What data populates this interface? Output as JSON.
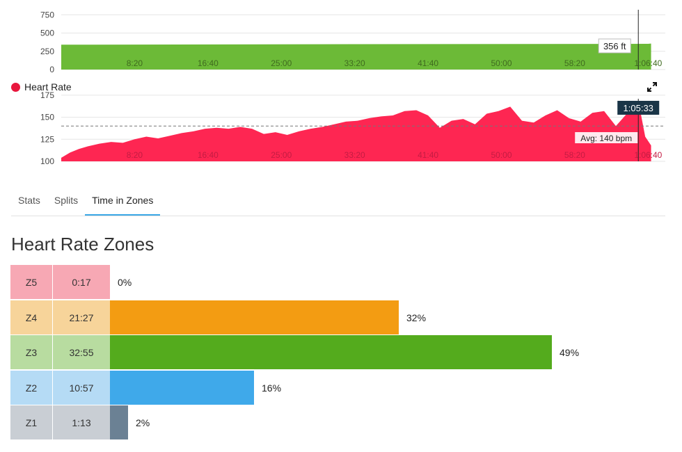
{
  "chart_data": [
    {
      "type": "area",
      "series": [
        {
          "values": [
            {
              "x": 0,
              "y": 340
            },
            {
              "x": 2000,
              "y": 348
            },
            {
              "x": 4000,
              "y": 352
            },
            {
              "x": 4020,
              "y": 356
            }
          ]
        }
      ],
      "y_ticks": [
        "750",
        "500",
        "250",
        "0"
      ],
      "ylim": [
        0,
        800
      ],
      "x_tick_labels": [
        "8:20",
        "16:40",
        "25:00",
        "33:20",
        "41:40",
        "50:00",
        "58:20",
        "1:06:40"
      ],
      "xlim_seconds": [
        0,
        4060
      ],
      "cursor_time_seconds": 3933,
      "cursor_label": "356 ft",
      "fill_color": "#6cba37",
      "grid": true
    },
    {
      "type": "area",
      "series": [
        {
          "name": "Heart Rate",
          "values": [
            {
              "x": 0,
              "y": 104
            },
            {
              "x": 60,
              "y": 110
            },
            {
              "x": 120,
              "y": 114
            },
            {
              "x": 180,
              "y": 117
            },
            {
              "x": 260,
              "y": 120
            },
            {
              "x": 340,
              "y": 122
            },
            {
              "x": 420,
              "y": 121
            },
            {
              "x": 500,
              "y": 125
            },
            {
              "x": 580,
              "y": 128
            },
            {
              "x": 660,
              "y": 126
            },
            {
              "x": 740,
              "y": 129
            },
            {
              "x": 820,
              "y": 132
            },
            {
              "x": 900,
              "y": 134
            },
            {
              "x": 980,
              "y": 137
            },
            {
              "x": 1060,
              "y": 138
            },
            {
              "x": 1140,
              "y": 137
            },
            {
              "x": 1220,
              "y": 139
            },
            {
              "x": 1300,
              "y": 137
            },
            {
              "x": 1380,
              "y": 131
            },
            {
              "x": 1460,
              "y": 133
            },
            {
              "x": 1540,
              "y": 130
            },
            {
              "x": 1620,
              "y": 134
            },
            {
              "x": 1700,
              "y": 137
            },
            {
              "x": 1780,
              "y": 139
            },
            {
              "x": 1860,
              "y": 142
            },
            {
              "x": 1940,
              "y": 145
            },
            {
              "x": 2020,
              "y": 146
            },
            {
              "x": 2100,
              "y": 149
            },
            {
              "x": 2180,
              "y": 151
            },
            {
              "x": 2260,
              "y": 152
            },
            {
              "x": 2340,
              "y": 157
            },
            {
              "x": 2420,
              "y": 158
            },
            {
              "x": 2500,
              "y": 152
            },
            {
              "x": 2580,
              "y": 138
            },
            {
              "x": 2660,
              "y": 146
            },
            {
              "x": 2740,
              "y": 148
            },
            {
              "x": 2820,
              "y": 142
            },
            {
              "x": 2900,
              "y": 154
            },
            {
              "x": 2980,
              "y": 157
            },
            {
              "x": 3060,
              "y": 162
            },
            {
              "x": 3140,
              "y": 146
            },
            {
              "x": 3220,
              "y": 144
            },
            {
              "x": 3300,
              "y": 152
            },
            {
              "x": 3380,
              "y": 158
            },
            {
              "x": 3460,
              "y": 149
            },
            {
              "x": 3540,
              "y": 145
            },
            {
              "x": 3620,
              "y": 155
            },
            {
              "x": 3700,
              "y": 157
            },
            {
              "x": 3780,
              "y": 140
            },
            {
              "x": 3860,
              "y": 155
            },
            {
              "x": 3920,
              "y": 164
            },
            {
              "x": 3950,
              "y": 154
            },
            {
              "x": 3980,
              "y": 128
            },
            {
              "x": 4020,
              "y": 118
            }
          ]
        }
      ],
      "y_ticks": [
        "175",
        "150",
        "125",
        "100"
      ],
      "ylim": [
        100,
        182
      ],
      "x_tick_labels": [
        "8:20",
        "16:40",
        "25:00",
        "33:20",
        "41:40",
        "50:00",
        "58:20",
        "1:06:40"
      ],
      "xlim_seconds": [
        0,
        4060
      ],
      "average_value": 140,
      "average_label": "Avg: 140 bpm",
      "cursor_time_seconds": 3933,
      "cursor_label": "1:05:33",
      "fill_color": "#fe2652",
      "grid": true
    },
    {
      "type": "bar",
      "title": "Heart Rate Zones",
      "categories": [
        "Z5",
        "Z4",
        "Z3",
        "Z2",
        "Z1"
      ],
      "times": [
        "0:17",
        "21:27",
        "32:55",
        "10:57",
        "1:13"
      ],
      "values": [
        0,
        32,
        49,
        16,
        2
      ],
      "value_labels": [
        "0%",
        "32%",
        "49%",
        "16%",
        "2%"
      ],
      "bar_colors": [
        "#f7a1ad",
        "#f39c12",
        "#54ab1d",
        "#3fa9ea",
        "#6b8194"
      ],
      "label_bg_colors": [
        "#f7a8b4",
        "#f7d49a",
        "#b8dca0",
        "#b5dbf5",
        "#c9ced4"
      ]
    }
  ],
  "legend": {
    "label": "Heart Rate",
    "color": "#e8173d"
  },
  "tabs": [
    {
      "label": "Stats"
    },
    {
      "label": "Splits"
    },
    {
      "label": "Time in Zones",
      "active": true
    }
  ]
}
